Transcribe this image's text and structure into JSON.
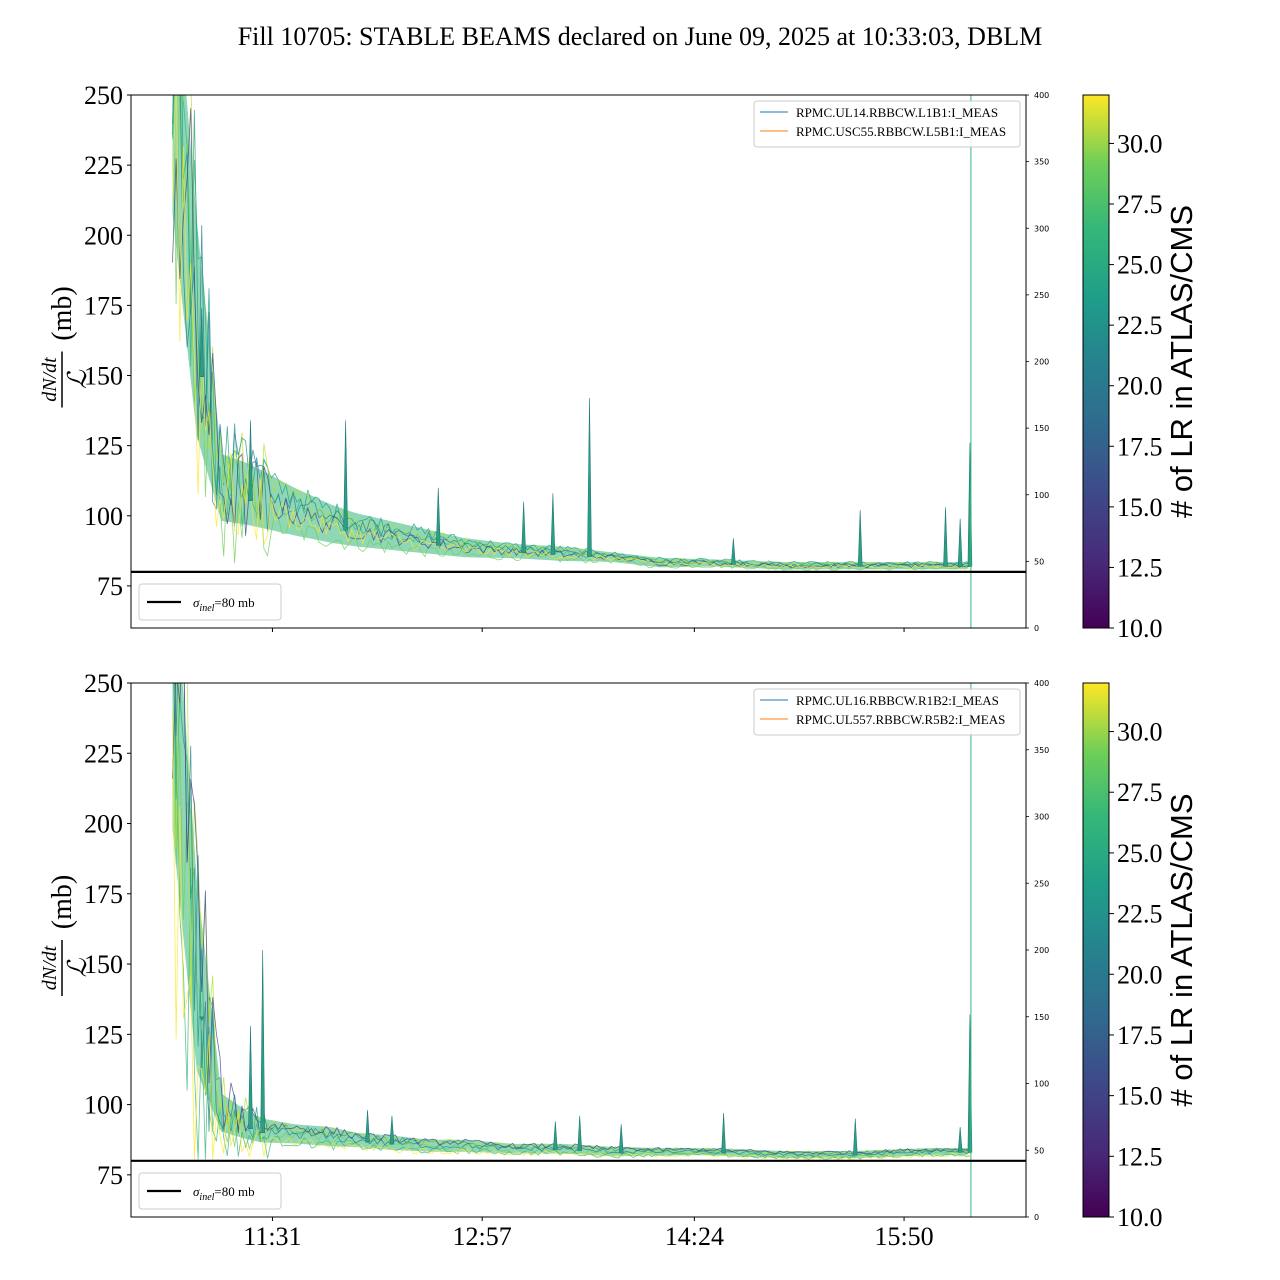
{
  "title": "Fill 10705: STABLE BEAMS declared on June 09, 2025 at 10:33:03, DBLM",
  "chart_data": [
    {
      "type": "line",
      "panel": "top",
      "ylabel": "dN/dt / L (mb)",
      "ylim": [
        60,
        250
      ],
      "yticks": [
        "75",
        "100",
        "125",
        "150",
        "175",
        "200",
        "225",
        "250"
      ],
      "y2lim": [
        0,
        400
      ],
      "y2ticks": [
        "0",
        "50",
        "100",
        "150",
        "200",
        "250",
        "300",
        "350",
        "400"
      ],
      "xlim": [
        "10:33",
        "16:40"
      ],
      "xticks": [
        "11:31",
        "12:57",
        "14:24",
        "15:50"
      ],
      "show_xticklabels": false,
      "series": [
        {
          "name": "RPMC.UL14.RBBCW.L1B1:I_MEAS",
          "color": "#1f77b4"
        },
        {
          "name": "RPMC.USC55.RBBCW.L5B1:I_MEAS",
          "color": "#ff7f0e"
        }
      ],
      "reference_line": {
        "value": 80,
        "label": "σinel=80 mb",
        "sub": "inel",
        "text": "=80 mb"
      },
      "band": {
        "x": [
          "10:50",
          "11:00",
          "11:10",
          "11:20",
          "11:27",
          "11:40",
          "11:55",
          "12:05",
          "12:20",
          "12:35",
          "12:50",
          "13:10",
          "13:30",
          "13:50",
          "14:10",
          "14:30",
          "15:00",
          "15:30",
          "16:00",
          "16:17"
        ],
        "center": [
          250,
          160,
          108,
          106,
          104,
          100,
          96,
          94,
          92,
          90,
          88,
          87,
          86,
          85,
          83,
          83,
          82,
          82,
          82,
          82
        ],
        "spread": [
          60,
          45,
          14,
          13,
          12,
          10,
          8,
          7,
          6,
          5,
          4,
          3,
          3,
          2,
          2,
          1.5,
          1.5,
          1.5,
          1.5,
          1.5
        ]
      },
      "spikes": [
        {
          "x": "11:02",
          "y": 174
        },
        {
          "x": "11:22",
          "y": 134
        },
        {
          "x": "12:01",
          "y": 134
        },
        {
          "x": "12:39",
          "y": 110
        },
        {
          "x": "13:14",
          "y": 105
        },
        {
          "x": "13:26",
          "y": 108
        },
        {
          "x": "13:41",
          "y": 142
        },
        {
          "x": "14:40",
          "y": 92
        },
        {
          "x": "15:32",
          "y": 102
        },
        {
          "x": "16:07",
          "y": 103
        },
        {
          "x": "16:13",
          "y": 99
        },
        {
          "x": "16:17",
          "y": 126
        }
      ],
      "colorbar": {
        "label": "# of LR in ATLAS/CMS",
        "range": [
          10,
          32
        ],
        "ticks": [
          "10.0",
          "12.5",
          "15.0",
          "17.5",
          "20.0",
          "22.5",
          "25.0",
          "27.5",
          "30.0"
        ]
      }
    },
    {
      "type": "line",
      "panel": "bottom",
      "ylabel": "dN/dt / L (mb)",
      "ylim": [
        60,
        250
      ],
      "yticks": [
        "75",
        "100",
        "125",
        "150",
        "175",
        "200",
        "225",
        "250"
      ],
      "y2lim": [
        0,
        400
      ],
      "y2ticks": [
        "0",
        "50",
        "100",
        "150",
        "200",
        "250",
        "300",
        "350",
        "400"
      ],
      "xlim": [
        "10:33",
        "16:40"
      ],
      "xticks": [
        "11:31",
        "12:57",
        "14:24",
        "15:50"
      ],
      "show_xticklabels": true,
      "series": [
        {
          "name": "RPMC.UL16.RBBCW.R1B2:I_MEAS",
          "color": "#1f77b4"
        },
        {
          "name": "RPMC.UL557.RBBCW.R5B2:I_MEAS",
          "color": "#ff7f0e"
        }
      ],
      "reference_line": {
        "value": 80,
        "label": "σinel=80 mb",
        "sub": "inel",
        "text": "=80 mb"
      },
      "band": {
        "x": [
          "10:50",
          "11:00",
          "11:10",
          "11:20",
          "11:27",
          "11:40",
          "11:55",
          "12:05",
          "12:20",
          "12:35",
          "12:50",
          "13:10",
          "13:30",
          "13:50",
          "14:10",
          "14:30",
          "15:00",
          "15:30",
          "16:00",
          "16:17"
        ],
        "center": [
          240,
          140,
          96,
          92,
          90,
          89,
          88,
          87,
          86,
          85,
          85,
          84,
          84,
          83,
          83,
          83,
          82,
          82,
          83,
          83
        ],
        "spread": [
          60,
          40,
          8,
          6,
          5,
          4,
          4,
          3,
          3,
          2.5,
          2.5,
          2,
          2,
          2,
          1.5,
          1.5,
          1.5,
          1.5,
          1.5,
          1.5
        ]
      },
      "spikes": [
        {
          "x": "11:02",
          "y": 130
        },
        {
          "x": "11:22",
          "y": 128
        },
        {
          "x": "11:27",
          "y": 155
        },
        {
          "x": "12:10",
          "y": 98
        },
        {
          "x": "12:20",
          "y": 96
        },
        {
          "x": "13:27",
          "y": 94
        },
        {
          "x": "13:37",
          "y": 96
        },
        {
          "x": "13:54",
          "y": 93
        },
        {
          "x": "14:36",
          "y": 97
        },
        {
          "x": "15:30",
          "y": 95
        },
        {
          "x": "16:13",
          "y": 92
        },
        {
          "x": "16:17",
          "y": 132
        }
      ],
      "colorbar": {
        "label": "# of LR in ATLAS/CMS",
        "range": [
          10,
          32
        ],
        "ticks": [
          "10.0",
          "12.5",
          "15.0",
          "17.5",
          "20.0",
          "22.5",
          "25.0",
          "27.5",
          "30.0"
        ]
      }
    }
  ]
}
